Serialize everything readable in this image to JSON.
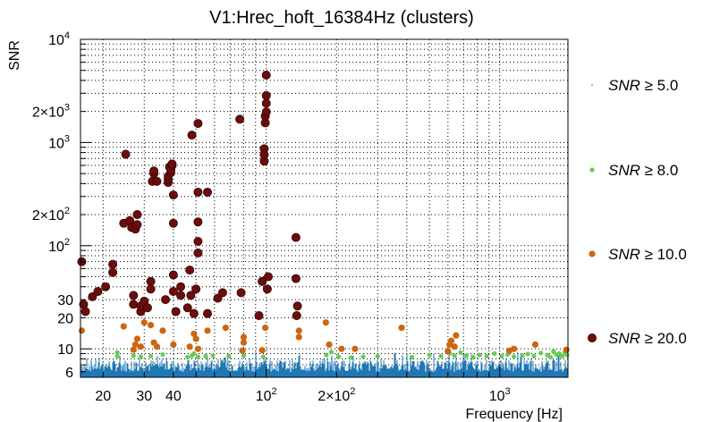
{
  "chart_data": {
    "type": "scatter",
    "title": "V1:Hrec_hoft_16384Hz (clusters)",
    "xlabel": "Frequency [Hz]",
    "ylabel": "SNR",
    "xscale": "log",
    "yscale": "log",
    "xlim": [
      16,
      1960
    ],
    "ylim": [
      5.3,
      10000
    ],
    "grid": true,
    "legend_position": "right",
    "x_ticks": [
      {
        "value": 20,
        "base": "20",
        "exp": ""
      },
      {
        "value": 30,
        "base": "30",
        "exp": ""
      },
      {
        "value": 40,
        "base": "40",
        "exp": ""
      },
      {
        "value": 100,
        "base": "10",
        "exp": "2"
      },
      {
        "value": 200,
        "base": "2×10",
        "exp": "2"
      },
      {
        "value": 1000,
        "base": "10",
        "exp": "3"
      }
    ],
    "y_ticks": [
      {
        "value": 6,
        "base": "6",
        "exp": ""
      },
      {
        "value": 10,
        "base": "10",
        "exp": ""
      },
      {
        "value": 20,
        "base": "20",
        "exp": ""
      },
      {
        "value": 30,
        "base": "30",
        "exp": ""
      },
      {
        "value": 100,
        "base": "10",
        "exp": "2"
      },
      {
        "value": 200,
        "base": "2×10",
        "exp": "2"
      },
      {
        "value": 1000,
        "base": "10",
        "exp": "3"
      },
      {
        "value": 2000,
        "base": "2×10",
        "exp": "3"
      },
      {
        "value": 10000,
        "base": "10",
        "exp": "4"
      }
    ],
    "series": [
      {
        "name": "SNR ≥ 5.0",
        "threshold": "5.0",
        "color": "#1f77b4",
        "marker": "dense-dots",
        "points": [
          [
            500,
            7
          ],
          [
            1000,
            7
          ]
        ]
      },
      {
        "name": "SNR ≥ 8.0",
        "threshold": "8.0",
        "color": "#66cc55",
        "marker": "small-circle",
        "points": [
          [
            23,
            8.5
          ],
          [
            23,
            9.2
          ],
          [
            27,
            8.6
          ],
          [
            29,
            8.4
          ],
          [
            32,
            8.5
          ],
          [
            36,
            8.8
          ],
          [
            46,
            8.3
          ],
          [
            48,
            8.6
          ],
          [
            49,
            9.0
          ],
          [
            51,
            8.4
          ],
          [
            55,
            8.5
          ],
          [
            59,
            8.6
          ],
          [
            69,
            8.5
          ],
          [
            80,
            8.6
          ],
          [
            97,
            8.4
          ],
          [
            181,
            8.7
          ],
          [
            190,
            9.3
          ],
          [
            204,
            8.4
          ],
          [
            230,
            8.2
          ],
          [
            260,
            8.4
          ],
          [
            300,
            8.5
          ],
          [
            420,
            8.3
          ],
          [
            500,
            8.7
          ],
          [
            560,
            8.5
          ],
          [
            610,
            9.0
          ],
          [
            640,
            8.6
          ],
          [
            680,
            9.2
          ],
          [
            720,
            8.6
          ],
          [
            770,
            8.3
          ],
          [
            820,
            8.7
          ],
          [
            880,
            8.5
          ],
          [
            950,
            9.0
          ],
          [
            1020,
            8.5
          ],
          [
            1080,
            8.8
          ],
          [
            1150,
            8.4
          ],
          [
            1250,
            8.6
          ],
          [
            1320,
            8.9
          ],
          [
            1400,
            8.5
          ],
          [
            1500,
            9.1
          ],
          [
            1600,
            8.7
          ],
          [
            1650,
            8.3
          ],
          [
            1700,
            9.5
          ],
          [
            1750,
            8.8
          ],
          [
            1800,
            9.0
          ],
          [
            1850,
            8.5
          ],
          [
            1900,
            9.2
          ],
          [
            1940,
            8.7
          ]
        ]
      },
      {
        "name": "SNR ≥ 10.0",
        "threshold": "10.0",
        "color": "#cc6611",
        "marker": "circle",
        "points": [
          [
            16.2,
            15
          ],
          [
            24.5,
            16.5
          ],
          [
            27,
            9.8
          ],
          [
            27.5,
            11
          ],
          [
            28,
            12.5
          ],
          [
            29,
            10.5
          ],
          [
            30,
            18
          ],
          [
            32,
            17
          ],
          [
            33,
            11.5
          ],
          [
            34,
            10.5
          ],
          [
            36,
            15
          ],
          [
            40,
            11
          ],
          [
            47,
            10.5
          ],
          [
            49,
            14
          ],
          [
            50,
            12.5
          ],
          [
            51,
            10
          ],
          [
            56,
            15
          ],
          [
            67,
            16
          ],
          [
            79,
            9.6
          ],
          [
            80,
            11.5
          ],
          [
            80,
            13
          ],
          [
            96,
            9.7
          ],
          [
            99,
            16
          ],
          [
            138,
            13
          ],
          [
            138,
            15
          ],
          [
            180,
            18
          ],
          [
            186,
            11
          ],
          [
            210,
            10
          ],
          [
            240,
            10
          ],
          [
            380,
            16
          ],
          [
            600,
            9.5
          ],
          [
            610,
            11
          ],
          [
            620,
            12
          ],
          [
            640,
            10.5
          ],
          [
            650,
            13.5
          ],
          [
            1100,
            9.6
          ],
          [
            1150,
            10
          ],
          [
            1420,
            11
          ],
          [
            1930,
            9.8
          ]
        ]
      },
      {
        "name": "SNR ≥ 20.0",
        "threshold": "20.0",
        "color": "#6b0d0d",
        "marker": "large-circle",
        "points": [
          [
            16.2,
            70
          ],
          [
            16.5,
            27
          ],
          [
            16.8,
            23
          ],
          [
            18,
            32
          ],
          [
            19,
            36
          ],
          [
            20.5,
            40
          ],
          [
            22,
            55
          ],
          [
            22,
            66
          ],
          [
            24.5,
            165
          ],
          [
            25,
            770
          ],
          [
            26,
            175
          ],
          [
            26.5,
            150
          ],
          [
            27,
            27
          ],
          [
            27,
            33
          ],
          [
            27.5,
            145
          ],
          [
            28,
            160
          ],
          [
            28,
            200
          ],
          [
            29,
            23
          ],
          [
            29,
            26
          ],
          [
            30,
            29
          ],
          [
            31,
            25
          ],
          [
            32,
            45
          ],
          [
            32,
            38
          ],
          [
            32.5,
            420
          ],
          [
            33,
            500
          ],
          [
            33,
            530
          ],
          [
            34,
            420
          ],
          [
            37,
            30
          ],
          [
            38,
            410
          ],
          [
            38,
            440
          ],
          [
            38,
            470
          ],
          [
            38.5,
            580
          ],
          [
            39,
            510
          ],
          [
            39,
            540
          ],
          [
            39.5,
            600
          ],
          [
            39.5,
            620
          ],
          [
            40,
            52
          ],
          [
            40,
            36
          ],
          [
            40,
            165
          ],
          [
            40,
            310
          ],
          [
            41,
            23
          ],
          [
            43,
            33
          ],
          [
            43,
            40
          ],
          [
            46,
            25
          ],
          [
            47,
            58
          ],
          [
            47.5,
            33
          ],
          [
            48,
            1180
          ],
          [
            49,
            22
          ],
          [
            50,
            38
          ],
          [
            51,
            1530
          ],
          [
            51,
            85
          ],
          [
            51,
            110
          ],
          [
            51,
            170
          ],
          [
            51,
            330
          ],
          [
            56,
            22
          ],
          [
            56,
            330
          ],
          [
            62,
            31
          ],
          [
            65,
            35
          ],
          [
            77,
            1680
          ],
          [
            78,
            35
          ],
          [
            93,
            21
          ],
          [
            96,
            45
          ],
          [
            98,
            660
          ],
          [
            98,
            760
          ],
          [
            98,
            870
          ],
          [
            99,
            1550
          ],
          [
            99,
            1800
          ],
          [
            100,
            1980
          ],
          [
            100,
            2400
          ],
          [
            100,
            2850
          ],
          [
            100,
            4500
          ],
          [
            101,
            38
          ],
          [
            102,
            50
          ],
          [
            134,
            120
          ],
          [
            134,
            48
          ],
          [
            135,
            21
          ],
          [
            136,
            26
          ]
        ]
      }
    ]
  }
}
